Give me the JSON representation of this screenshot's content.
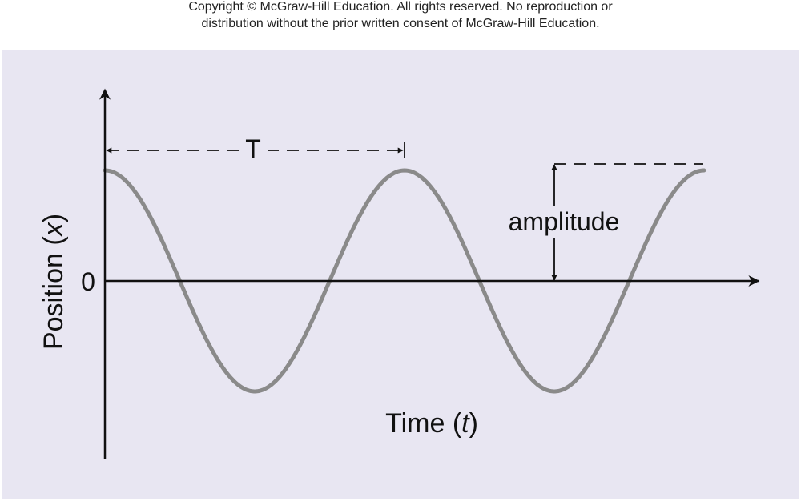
{
  "copyright": {
    "line1": "Copyright © McGraw-Hill Education.  All rights reserved. No reproduction or",
    "line2": "distribution without the prior written consent of McGraw-Hill Education."
  },
  "diagram": {
    "colors": {
      "background": "#e8e6f2",
      "curve": "#8a8a8a",
      "axes": "#111111"
    },
    "x_axis": {
      "label_prefix": "Time (",
      "label_var": "t",
      "label_suffix": ")"
    },
    "y_axis": {
      "label_prefix": "Position (",
      "label_var": "x",
      "label_suffix": ")",
      "zero_label": "0"
    },
    "period_label": "T",
    "amplitude_label": "amplitude",
    "wave": {
      "type": "cosine",
      "cycles_shown": 2
    }
  }
}
